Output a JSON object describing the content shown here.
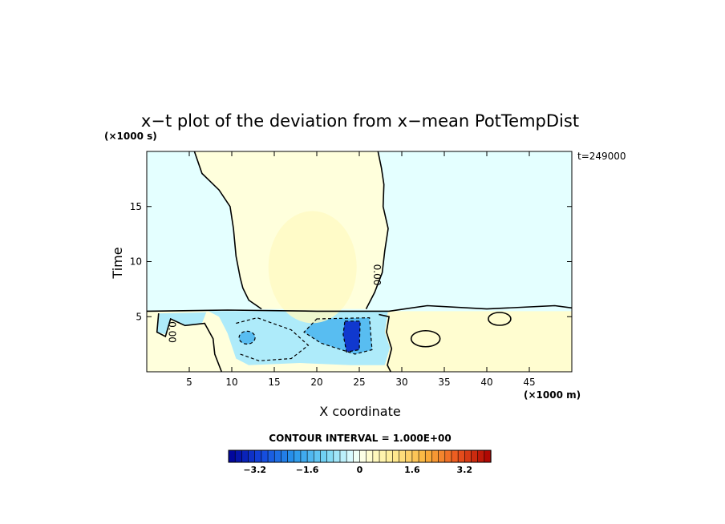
{
  "chart_data": {
    "type": "heatmap",
    "title": "x−t plot of the deviation from x−mean PotTempDist",
    "xlabel": "X coordinate",
    "ylabel": "Time",
    "x_unit": "(×1000 m)",
    "y_unit": "(×1000 s)",
    "time_label": "t=249000",
    "xlim": [
      0,
      50
    ],
    "ylim": [
      0,
      20
    ],
    "x_ticks": [
      5,
      10,
      15,
      20,
      25,
      30,
      35,
      40,
      45
    ],
    "y_ticks": [
      5,
      10,
      15
    ],
    "contour_interval_text": "CONTOUR INTERVAL = 1.000E+00",
    "contour_label": "0.00",
    "colorbar": {
      "min": -4.0,
      "max": 4.0,
      "step": 0.2,
      "tick_values": [
        -3.2,
        -1.6,
        0,
        1.6,
        3.2
      ],
      "tick_labels": [
        "−3.2",
        "−1.6",
        "0",
        "1.6",
        "3.2"
      ]
    },
    "regions": [
      {
        "name": "upper-left-negative",
        "value": -0.2
      },
      {
        "name": "upper-right-negative",
        "value": -0.2
      },
      {
        "name": "upper-center-positive",
        "value": 0.2
      },
      {
        "name": "upper-center-core",
        "value": 0.4
      },
      {
        "name": "lower-left-positive",
        "value": 0.2
      },
      {
        "name": "lower-center-negative",
        "value": -0.6
      },
      {
        "name": "lower-center-core",
        "value": -1.4
      },
      {
        "name": "lower-min-core",
        "value": -3.2
      },
      {
        "name": "lower-right-positive",
        "value": 0.3
      }
    ]
  }
}
